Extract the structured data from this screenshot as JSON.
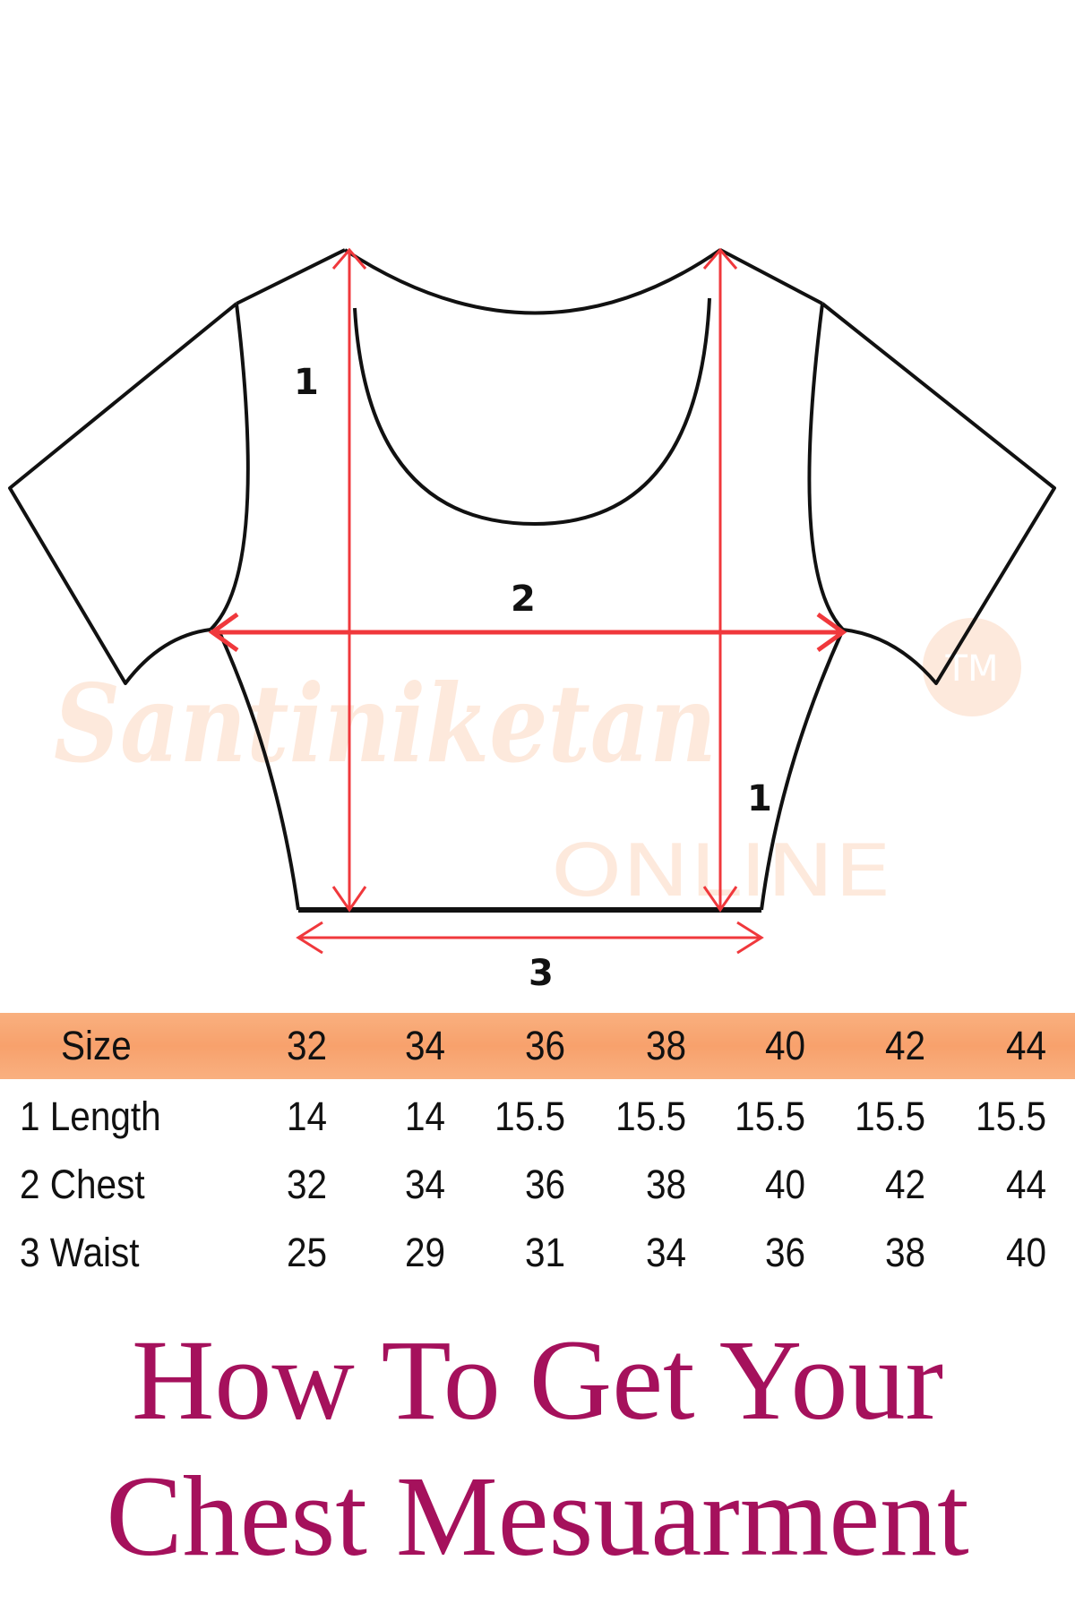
{
  "diagram": {
    "labels": {
      "length_left": "1",
      "chest": "2",
      "length_right": "1",
      "waist": "3"
    },
    "watermark": {
      "brand": "Santiniketan",
      "sub": "ONLINE",
      "tm": "TM"
    },
    "colors": {
      "outline": "#111111",
      "measure": "#f0383c",
      "watermark": "#fde9dc"
    }
  },
  "table": {
    "header": {
      "label": "Size",
      "sizes": [
        "32",
        "34",
        "36",
        "38",
        "40",
        "42",
        "44"
      ]
    },
    "rows": [
      {
        "label": "1 Length",
        "values": [
          "14",
          "14",
          "15.5",
          "15.5",
          "15.5",
          "15.5",
          "15.5"
        ]
      },
      {
        "label": "2 Chest",
        "values": [
          "32",
          "34",
          "36",
          "38",
          "40",
          "42",
          "44"
        ]
      },
      {
        "label": "3 Waist",
        "values": [
          "25",
          "29",
          "31",
          "34",
          "36",
          "38",
          "40"
        ]
      }
    ],
    "header_color": "#f9a877"
  },
  "title": {
    "line1": "How To Get Your",
    "line2": "Chest Mesuarment",
    "color": "#a5115c"
  }
}
